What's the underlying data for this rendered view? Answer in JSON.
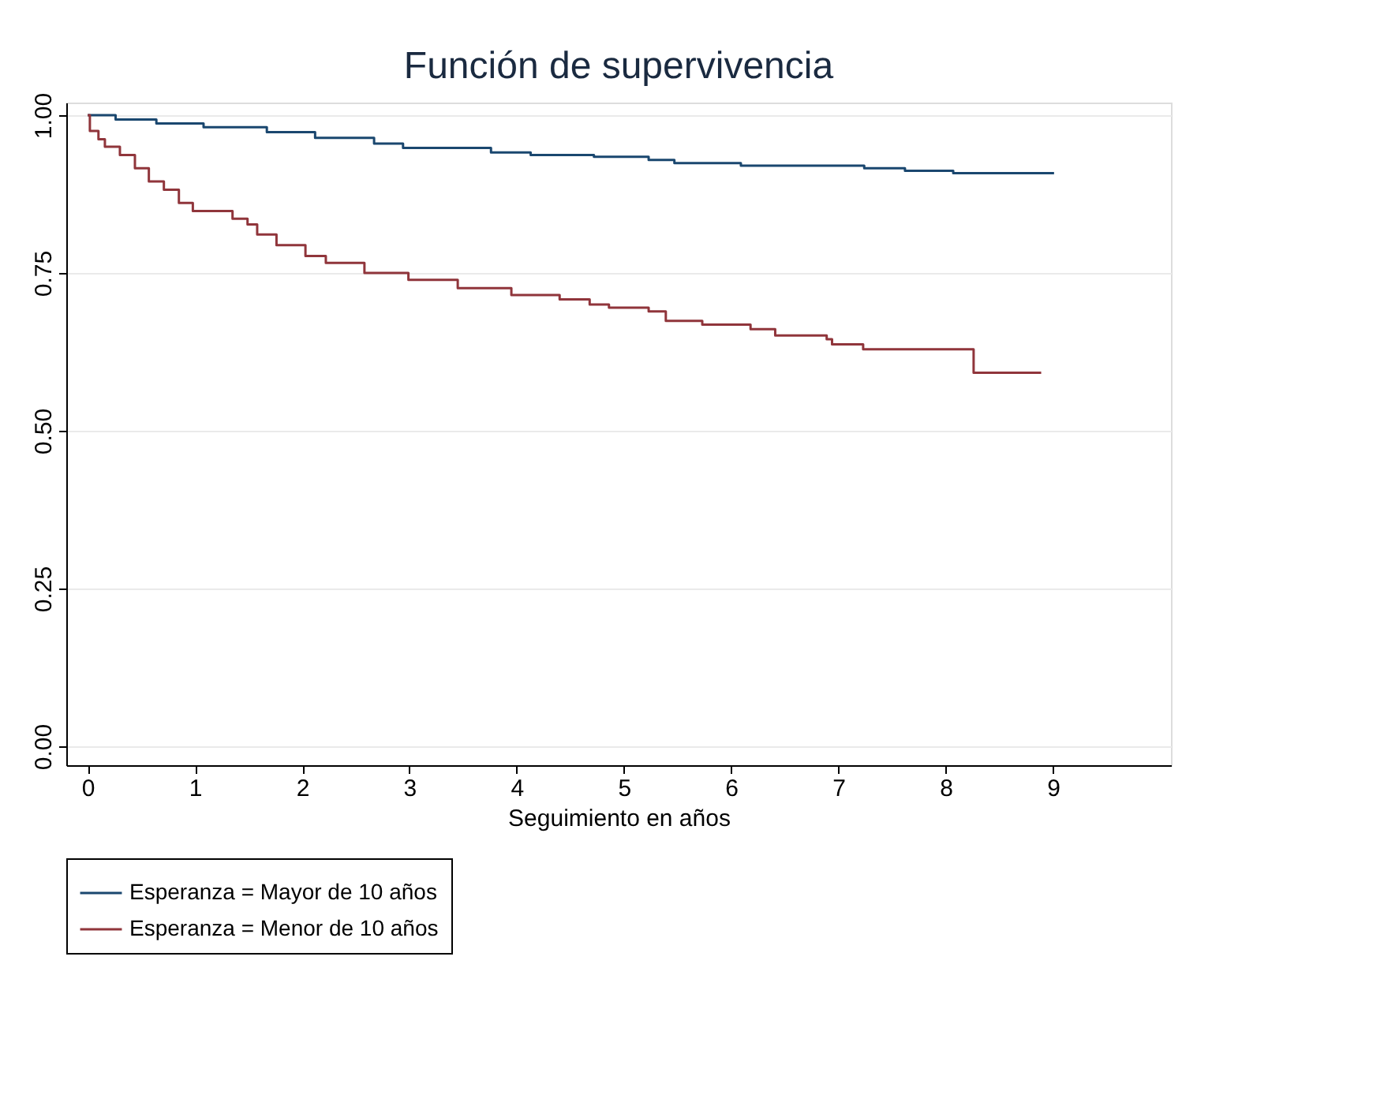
{
  "chart_data": {
    "type": "step",
    "title": "Función de supervivencia",
    "xlabel": "Seguimiento en años",
    "xlim": [
      -0.2,
      10.1
    ],
    "ylim": [
      -0.03,
      1.02
    ],
    "xticks": [
      0,
      1,
      2,
      3,
      4,
      5,
      6,
      7,
      8,
      9
    ],
    "yticks": [
      {
        "value": 0,
        "label": "0.00"
      },
      {
        "value": 0.25,
        "label": "0.25"
      },
      {
        "value": 0.5,
        "label": "0.50"
      },
      {
        "value": 0.75,
        "label": "0.75"
      },
      {
        "value": 1,
        "label": "1.00"
      }
    ],
    "grid": "y",
    "legend": "bottom",
    "marker": "none",
    "line_style": "solid",
    "series": [
      {
        "name": "Esperanza = Mayor de 10 años",
        "color": "#1a476f",
        "x": [
          0,
          0.26,
          0.64,
          1.08,
          1.67,
          2.12,
          2.67,
          2.94,
          3.76,
          4.13,
          4.72,
          5.23,
          5.47,
          6.09,
          7.24,
          7.62,
          8.07,
          9.01
        ],
        "values": [
          1.0,
          0.993,
          0.987,
          0.981,
          0.973,
          0.964,
          0.955,
          0.948,
          0.941,
          0.937,
          0.934,
          0.929,
          0.924,
          0.92,
          0.916,
          0.912,
          0.908,
          0.908
        ]
      },
      {
        "name": "Esperanza = Menor de 10 años",
        "color": "#90353b",
        "x": [
          0,
          0.02,
          0.1,
          0.16,
          0.3,
          0.44,
          0.57,
          0.71,
          0.85,
          0.98,
          1.35,
          1.49,
          1.58,
          1.76,
          2.03,
          2.22,
          2.58,
          2.99,
          3.45,
          3.95,
          4.4,
          4.68,
          4.86,
          5.23,
          5.39,
          5.73,
          6.18,
          6.41,
          6.89,
          6.94,
          7.23,
          8.26,
          8.89
        ],
        "values": [
          1.0,
          0.975,
          0.962,
          0.95,
          0.937,
          0.916,
          0.895,
          0.882,
          0.861,
          0.848,
          0.836,
          0.827,
          0.811,
          0.794,
          0.777,
          0.766,
          0.75,
          0.739,
          0.726,
          0.715,
          0.708,
          0.7,
          0.695,
          0.689,
          0.674,
          0.668,
          0.661,
          0.651,
          0.645,
          0.637,
          0.629,
          0.592,
          0.592
        ]
      }
    ]
  }
}
